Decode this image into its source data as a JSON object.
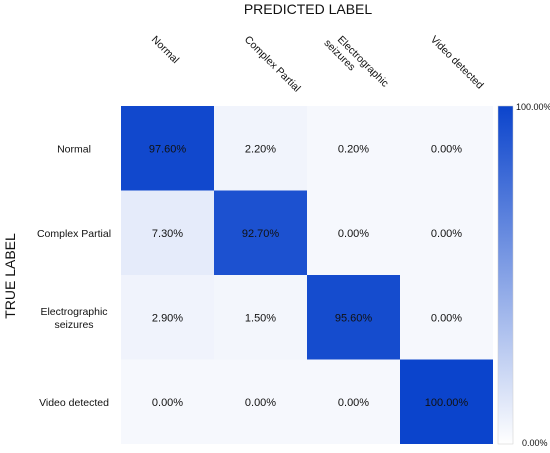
{
  "chart_data": {
    "type": "heatmap",
    "title": "",
    "xlabel": "PREDICTED LABEL",
    "ylabel": "TRUE LABEL",
    "x_categories": [
      [
        "Normal"
      ],
      [
        "Complex Partial"
      ],
      [
        "Electrographic",
        "seizures"
      ],
      [
        "Video detected"
      ]
    ],
    "y_categories": [
      [
        "Normal"
      ],
      [
        "Complex Partial"
      ],
      [
        "Electrographic",
        "seizures"
      ],
      [
        "Video detected"
      ]
    ],
    "values": [
      [
        97.6,
        2.2,
        0.2,
        0.0
      ],
      [
        7.3,
        92.7,
        0.0,
        0.0
      ],
      [
        2.9,
        1.5,
        95.6,
        0.0
      ],
      [
        0.0,
        0.0,
        0.0,
        100.0
      ]
    ],
    "cell_labels": [
      [
        "97.60%",
        "2.20%",
        "0.20%",
        "0.00%"
      ],
      [
        "7.30%",
        "92.70%",
        "0.00%",
        "0.00%"
      ],
      [
        "2.90%",
        "1.50%",
        "95.60%",
        "0.00%"
      ],
      [
        "0.00%",
        "0.00%",
        "0.00%",
        "100.00%"
      ]
    ],
    "value_range": [
      0,
      100
    ],
    "colorbar": {
      "max_label": "100.00%",
      "min_label": "0.00%",
      "high_color": "#0b44cc",
      "low_color": "#ffffff"
    },
    "grid": false,
    "legend_position": "right"
  }
}
